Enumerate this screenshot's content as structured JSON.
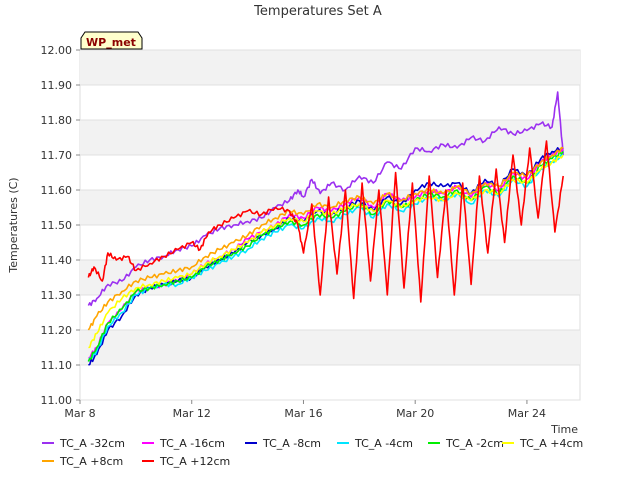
{
  "chart_data": {
    "type": "line",
    "title": "Temperatures Set A",
    "xlabel": "Time",
    "ylabel": "Temperatures (C)",
    "badge": "WP_met",
    "xlim": [
      8,
      25.9
    ],
    "ylim": [
      11.0,
      12.0
    ],
    "yticks": [
      "11.00",
      "11.10",
      "11.20",
      "11.30",
      "11.40",
      "11.50",
      "11.60",
      "11.70",
      "11.80",
      "11.90",
      "12.00"
    ],
    "xticks": [
      {
        "label": "Mar 8",
        "value": 8
      },
      {
        "label": "Mar 12",
        "value": 12
      },
      {
        "label": "Mar 16",
        "value": 16
      },
      {
        "label": "Mar 20",
        "value": 20
      },
      {
        "label": "Mar 24",
        "value": 24
      }
    ],
    "grid": true,
    "legend_position": "bottom",
    "series": [
      {
        "name": "TC_A -32cm",
        "color": "#9b30f0",
        "x": [
          8.3,
          8.6,
          9.0,
          9.5,
          10.0,
          10.5,
          11.0,
          11.5,
          12.0,
          12.5,
          13.0,
          13.5,
          14.0,
          14.5,
          15.0,
          15.5,
          15.8,
          16.0,
          16.3,
          16.6,
          17.0,
          17.5,
          18.0,
          18.5,
          19.0,
          19.5,
          20.0,
          20.5,
          21.0,
          21.5,
          22.0,
          22.5,
          23.0,
          23.5,
          24.0,
          24.5,
          24.9,
          25.1,
          25.3
        ],
        "y": [
          11.27,
          11.29,
          11.33,
          11.34,
          11.38,
          11.4,
          11.41,
          11.43,
          11.44,
          11.47,
          11.49,
          11.5,
          11.51,
          11.52,
          11.55,
          11.57,
          11.6,
          11.58,
          11.63,
          11.59,
          11.62,
          11.6,
          11.64,
          11.62,
          11.68,
          11.66,
          11.72,
          11.71,
          11.73,
          11.72,
          11.75,
          11.74,
          11.78,
          11.76,
          11.77,
          11.79,
          11.78,
          11.88,
          11.7
        ]
      },
      {
        "name": "TC_A -16cm",
        "color": "#ff00ff",
        "x": [
          8.3,
          8.6,
          9.0,
          9.5,
          10.0,
          10.5,
          11.0,
          11.5,
          12.0,
          12.5,
          13.0,
          13.5,
          14.0,
          14.5,
          15.0,
          15.5,
          16.0,
          16.5,
          17.0,
          17.5,
          18.0,
          18.5,
          19.0,
          19.5,
          20.0,
          20.5,
          21.0,
          21.5,
          22.0,
          22.5,
          23.0,
          23.5,
          24.0,
          24.5,
          24.9,
          25.3
        ],
        "y": [
          11.12,
          11.15,
          11.22,
          11.26,
          11.31,
          11.32,
          11.33,
          11.34,
          11.36,
          11.39,
          11.41,
          11.43,
          11.46,
          11.48,
          11.5,
          11.53,
          11.52,
          11.55,
          11.54,
          11.56,
          11.58,
          11.55,
          11.59,
          11.57,
          11.58,
          11.6,
          11.59,
          11.61,
          11.58,
          11.62,
          11.6,
          11.65,
          11.63,
          11.68,
          11.7,
          11.72
        ]
      },
      {
        "name": "TC_A -8cm",
        "color": "#0000cc",
        "x": [
          8.3,
          8.6,
          9.0,
          9.5,
          10.0,
          10.5,
          11.0,
          11.5,
          12.0,
          12.5,
          13.0,
          13.5,
          14.0,
          14.5,
          15.0,
          15.5,
          16.0,
          16.5,
          17.0,
          17.5,
          18.0,
          18.5,
          19.0,
          19.5,
          20.0,
          20.5,
          21.0,
          21.5,
          22.0,
          22.5,
          23.0,
          23.5,
          24.0,
          24.5,
          24.9,
          25.3
        ],
        "y": [
          11.1,
          11.13,
          11.2,
          11.24,
          11.3,
          11.32,
          11.33,
          11.34,
          11.35,
          11.38,
          11.4,
          11.42,
          11.45,
          11.47,
          11.49,
          11.52,
          11.51,
          11.54,
          11.53,
          11.55,
          11.57,
          11.54,
          11.58,
          11.56,
          11.6,
          11.62,
          11.61,
          11.62,
          11.59,
          11.63,
          11.61,
          11.66,
          11.64,
          11.69,
          11.71,
          11.72
        ]
      },
      {
        "name": "TC_A -4cm",
        "color": "#00e5ff",
        "x": [
          8.3,
          8.6,
          9.0,
          9.5,
          10.0,
          10.5,
          11.0,
          11.5,
          12.0,
          12.5,
          13.0,
          13.5,
          14.0,
          14.5,
          15.0,
          15.5,
          16.0,
          16.5,
          17.0,
          17.5,
          18.0,
          18.5,
          19.0,
          19.5,
          20.0,
          20.5,
          21.0,
          21.5,
          22.0,
          22.5,
          23.0,
          23.5,
          24.0,
          24.5,
          24.9,
          25.3
        ],
        "y": [
          11.11,
          11.14,
          11.21,
          11.25,
          11.3,
          11.32,
          11.33,
          11.33,
          11.35,
          11.37,
          11.39,
          11.41,
          11.43,
          11.46,
          11.48,
          11.5,
          11.49,
          11.52,
          11.51,
          11.53,
          11.55,
          11.52,
          11.56,
          11.54,
          11.56,
          11.58,
          11.57,
          11.59,
          11.56,
          11.6,
          11.58,
          11.63,
          11.61,
          11.66,
          11.68,
          11.7
        ]
      },
      {
        "name": "TC_A -2cm",
        "color": "#00ee00",
        "x": [
          8.3,
          8.6,
          9.0,
          9.5,
          10.0,
          10.5,
          11.0,
          11.5,
          12.0,
          12.5,
          13.0,
          13.5,
          14.0,
          14.5,
          15.0,
          15.5,
          16.0,
          16.5,
          17.0,
          17.5,
          18.0,
          18.5,
          19.0,
          19.5,
          20.0,
          20.5,
          21.0,
          21.5,
          22.0,
          22.5,
          23.0,
          23.5,
          24.0,
          24.5,
          24.9,
          25.3
        ],
        "y": [
          11.11,
          11.15,
          11.22,
          11.26,
          11.31,
          11.32,
          11.33,
          11.34,
          11.35,
          11.38,
          11.4,
          11.42,
          11.44,
          11.47,
          11.49,
          11.51,
          11.5,
          11.53,
          11.52,
          11.54,
          11.56,
          11.53,
          11.57,
          11.55,
          11.57,
          11.59,
          11.58,
          11.6,
          11.57,
          11.61,
          11.59,
          11.64,
          11.62,
          11.67,
          11.69,
          11.71
        ]
      },
      {
        "name": "TC_A +4cm",
        "color": "#ffff00",
        "x": [
          8.3,
          8.6,
          9.0,
          9.5,
          10.0,
          10.5,
          11.0,
          11.5,
          12.0,
          12.5,
          13.0,
          13.5,
          14.0,
          14.5,
          15.0,
          15.5,
          16.0,
          16.5,
          17.0,
          17.5,
          18.0,
          18.5,
          19.0,
          19.5,
          20.0,
          20.5,
          21.0,
          21.5,
          22.0,
          22.5,
          23.0,
          23.5,
          24.0,
          24.5,
          24.9,
          25.3
        ],
        "y": [
          11.15,
          11.19,
          11.25,
          11.29,
          11.32,
          11.33,
          11.34,
          11.35,
          11.36,
          11.39,
          11.41,
          11.43,
          11.45,
          11.48,
          11.5,
          11.52,
          11.51,
          11.54,
          11.53,
          11.55,
          11.56,
          11.54,
          11.57,
          11.55,
          11.57,
          11.58,
          11.57,
          11.59,
          11.57,
          11.6,
          11.59,
          11.63,
          11.62,
          11.66,
          11.68,
          11.7
        ]
      },
      {
        "name": "TC_A +8cm",
        "color": "#ffa500",
        "x": [
          8.3,
          8.6,
          9.0,
          9.5,
          10.0,
          10.5,
          11.0,
          11.5,
          12.0,
          12.5,
          13.0,
          13.5,
          14.0,
          14.5,
          15.0,
          15.5,
          16.0,
          16.5,
          17.0,
          17.5,
          18.0,
          18.5,
          19.0,
          19.5,
          20.0,
          20.5,
          21.0,
          21.5,
          22.0,
          22.5,
          23.0,
          23.5,
          24.0,
          24.5,
          24.9,
          25.3
        ],
        "y": [
          11.2,
          11.24,
          11.28,
          11.31,
          11.34,
          11.35,
          11.36,
          11.37,
          11.38,
          11.41,
          11.43,
          11.45,
          11.47,
          11.5,
          11.52,
          11.54,
          11.53,
          11.56,
          11.55,
          11.57,
          11.58,
          11.56,
          11.59,
          11.57,
          11.59,
          11.6,
          11.59,
          11.61,
          11.59,
          11.62,
          11.61,
          11.65,
          11.64,
          11.68,
          11.7,
          11.72
        ]
      },
      {
        "name": "TC_A +12cm",
        "color": "#ff0000",
        "x": [
          8.3,
          8.5,
          8.8,
          9.0,
          9.3,
          9.7,
          10.0,
          10.5,
          11.0,
          11.5,
          12.0,
          12.3,
          12.6,
          13.0,
          13.5,
          14.0,
          14.5,
          15.0,
          15.5,
          15.8,
          16.0,
          16.3,
          16.6,
          16.9,
          17.2,
          17.5,
          17.8,
          18.1,
          18.4,
          18.7,
          19.0,
          19.3,
          19.6,
          19.9,
          20.2,
          20.5,
          20.8,
          21.1,
          21.4,
          21.7,
          22.0,
          22.3,
          22.6,
          22.9,
          23.2,
          23.5,
          23.8,
          24.1,
          24.4,
          24.7,
          25.0,
          25.3
        ],
        "y": [
          11.35,
          11.38,
          11.34,
          11.42,
          11.4,
          11.41,
          11.37,
          11.39,
          11.41,
          11.43,
          11.45,
          11.43,
          11.48,
          11.5,
          11.52,
          11.54,
          11.53,
          11.55,
          11.54,
          11.5,
          11.42,
          11.56,
          11.3,
          11.58,
          11.36,
          11.6,
          11.29,
          11.62,
          11.34,
          11.6,
          11.3,
          11.65,
          11.32,
          11.62,
          11.28,
          11.64,
          11.35,
          11.6,
          11.3,
          11.62,
          11.33,
          11.64,
          11.42,
          11.66,
          11.45,
          11.7,
          11.5,
          11.72,
          11.52,
          11.74,
          11.48,
          11.64
        ]
      }
    ]
  }
}
